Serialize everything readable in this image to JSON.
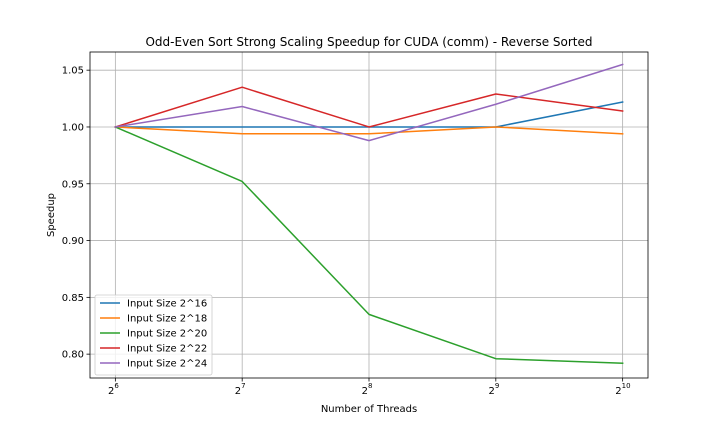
{
  "chart_data": {
    "type": "line",
    "title": "Odd-Even Sort Strong Scaling Speedup for CUDA (comm) - Reverse Sorted",
    "xlabel": "Number of Threads",
    "ylabel": "Speedup",
    "x": [
      64,
      128,
      256,
      512,
      1024
    ],
    "x_scale": "log2",
    "x_tick_labels": [
      {
        "base": "2",
        "exp": "6"
      },
      {
        "base": "2",
        "exp": "7"
      },
      {
        "base": "2",
        "exp": "8"
      },
      {
        "base": "2",
        "exp": "9"
      },
      {
        "base": "2",
        "exp": "10"
      }
    ],
    "ylim": [
      0.779,
      1.066
    ],
    "y_ticks": [
      "0.80",
      "0.85",
      "0.90",
      "0.95",
      "1.00",
      "1.05"
    ],
    "grid": true,
    "legend_position": "lower-left",
    "series": [
      {
        "name": "Input Size 2^16",
        "color": "#1f77b4",
        "values": [
          1.0,
          1.0,
          1.0,
          1.0,
          1.022
        ]
      },
      {
        "name": "Input Size 2^18",
        "color": "#ff7f0e",
        "values": [
          1.0,
          0.994,
          0.994,
          1.0,
          0.994
        ]
      },
      {
        "name": "Input Size 2^20",
        "color": "#2ca02c",
        "values": [
          1.0,
          0.952,
          0.835,
          0.796,
          0.792
        ]
      },
      {
        "name": "Input Size 2^22",
        "color": "#d62728",
        "values": [
          1.0,
          1.035,
          1.0,
          1.029,
          1.014
        ]
      },
      {
        "name": "Input Size 2^24",
        "color": "#9467bd",
        "values": [
          1.0,
          1.018,
          0.988,
          1.02,
          1.055
        ]
      }
    ]
  }
}
